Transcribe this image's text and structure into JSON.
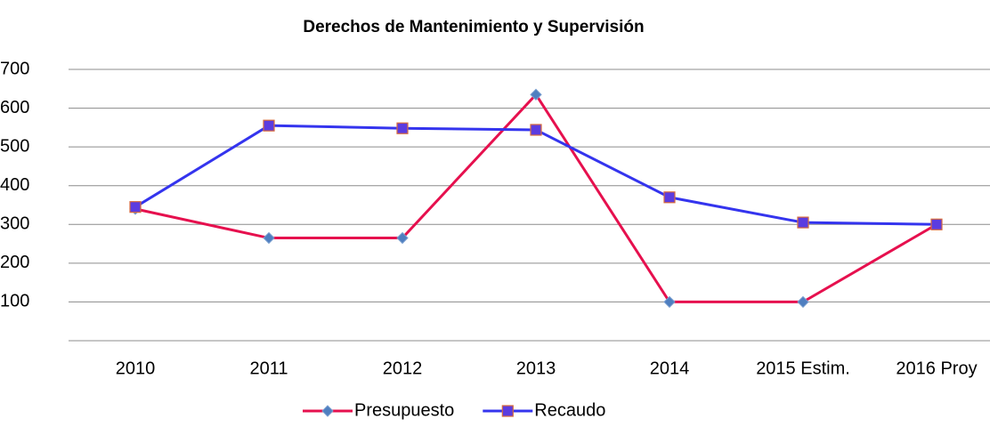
{
  "chart_data": {
    "type": "line",
    "title": "Derechos de Mantenimiento y Supervisión",
    "categories": [
      "2010",
      "2011",
      "2012",
      "2013",
      "2014",
      "2015 Estim.",
      "2016 Proy"
    ],
    "series": [
      {
        "name": "Presupuesto",
        "color": "#e6104e",
        "marker": "diamond",
        "marker_color": "#4f7fc0",
        "values": [
          340,
          265,
          265,
          635,
          100,
          100,
          300
        ]
      },
      {
        "name": "Recaudo",
        "color": "#3434ee",
        "marker": "square",
        "marker_color": "#5b3ce0",
        "values": [
          345,
          555,
          548,
          544,
          370,
          305,
          300
        ]
      }
    ],
    "ylim": [
      0,
      700
    ],
    "yticks": [
      100,
      200,
      300,
      400,
      500,
      600,
      700
    ],
    "grid": true,
    "legend": "bottom"
  }
}
